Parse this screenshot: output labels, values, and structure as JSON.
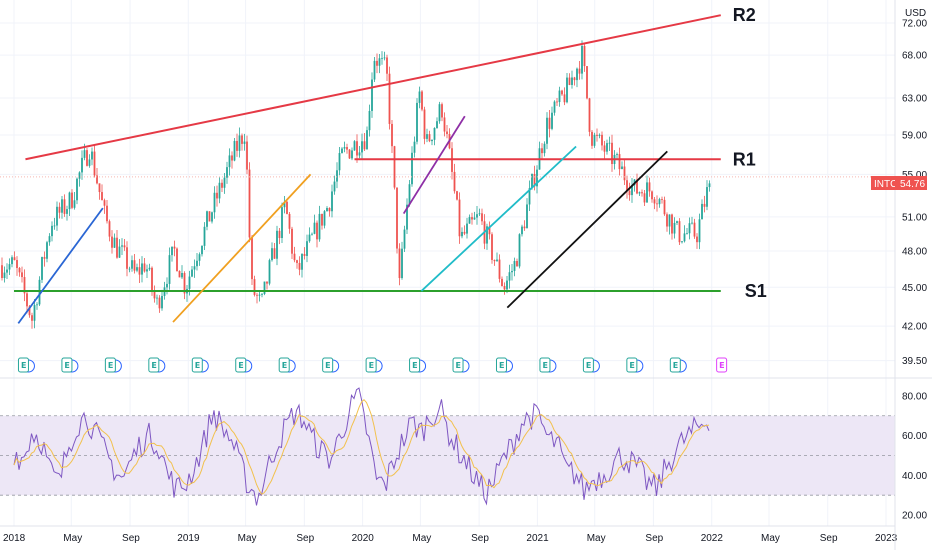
{
  "currency_label": "USD",
  "symbol_label": "INTC",
  "last_price": "54.76",
  "earnings_marker": "E",
  "colors": {
    "up_candle": "#26a69a",
    "down_candle": "#ef5350",
    "rsi_line": "#7e57c2",
    "rsi_ma": "#f2c14e",
    "rsi_band": "#ede7f6",
    "resistance": "#e53945",
    "support": "#2ca02c",
    "price_line": "#f5b7b1"
  },
  "chart_data": [
    {
      "type": "candlestick",
      "description_visible": "price panel",
      "y_ticks": [
        "72.00",
        "68.00",
        "63.00",
        "59.00",
        "55.00",
        "51.00",
        "48.00",
        "45.00",
        "42.00",
        "39.50"
      ],
      "x_ticks": [
        "2018",
        "May",
        "Sep",
        "2019",
        "May",
        "Sep",
        "2020",
        "May",
        "Sep",
        "2021",
        "May",
        "Sep",
        "2022",
        "May",
        "Sep",
        "2023"
      ],
      "x_range": [
        "2018-01-01",
        "2023-01-01"
      ],
      "y_range": [
        38.5,
        75
      ],
      "scale": "log",
      "close_path": [
        [
          "2018-01-02",
          46.8
        ],
        [
          "2018-02-08",
          42.5
        ],
        [
          "2018-03-20",
          50.5
        ],
        [
          "2018-04-30",
          52.5
        ],
        [
          "2018-06-08",
          57.8
        ],
        [
          "2018-07-10",
          51.0
        ],
        [
          "2018-08-01",
          48.5
        ],
        [
          "2018-09-12",
          46.0
        ],
        [
          "2018-10-03",
          47.0
        ],
        [
          "2018-10-26",
          43.5
        ],
        [
          "2018-12-03",
          48.0
        ],
        [
          "2018-12-26",
          45.0
        ],
        [
          "2019-01-24",
          48.5
        ],
        [
          "2019-04-15",
          58.0
        ],
        [
          "2019-04-30",
          59.5
        ],
        [
          "2019-05-13",
          45.0
        ],
        [
          "2019-06-03",
          43.5
        ],
        [
          "2019-07-23",
          52.0
        ],
        [
          "2019-08-15",
          46.0
        ],
        [
          "2019-10-20",
          52.0
        ],
        [
          "2019-11-20",
          57.0
        ],
        [
          "2020-01-10",
          59.0
        ],
        [
          "2020-01-24",
          68.0
        ],
        [
          "2020-02-20",
          66.0
        ],
        [
          "2020-03-18",
          45.0
        ],
        [
          "2020-04-29",
          63.5
        ],
        [
          "2020-05-14",
          58.0
        ],
        [
          "2020-06-15",
          62.0
        ],
        [
          "2020-07-24",
          49.0
        ],
        [
          "2020-09-01",
          51.0
        ],
        [
          "2020-10-23",
          45.0
        ],
        [
          "2020-11-16",
          47.0
        ],
        [
          "2021-01-20",
          60.0
        ],
        [
          "2021-03-05",
          64.0
        ],
        [
          "2021-04-05",
          68.0
        ],
        [
          "2021-04-23",
          59.0
        ],
        [
          "2021-06-10",
          56.5
        ],
        [
          "2021-07-23",
          53.5
        ],
        [
          "2021-09-01",
          53.5
        ],
        [
          "2021-10-22",
          49.5
        ],
        [
          "2021-12-01",
          49.5
        ],
        [
          "2021-12-31",
          54.76
        ]
      ]
    },
    {
      "type": "line",
      "description_visible": "RSI panel",
      "y_ticks": [
        "80.00",
        "60.00",
        "40.00",
        "20.00"
      ],
      "y_range": [
        15,
        88
      ],
      "band": [
        30,
        70
      ],
      "mid": 50,
      "series": [
        {
          "values": [
            52,
            48,
            62,
            58,
            42,
            36,
            55,
            66,
            70,
            61,
            52,
            44,
            38,
            48,
            56,
            60,
            55,
            40,
            33,
            36,
            45,
            57,
            72,
            64,
            58,
            45,
            34,
            29,
            43,
            56,
            64,
            72,
            68,
            58,
            52,
            48,
            60,
            72,
            80,
            62,
            38,
            35,
            48,
            58,
            67,
            62,
            70,
            74,
            62,
            53,
            46,
            38,
            31,
            37,
            48,
            55,
            66,
            70,
            69,
            58,
            56,
            42,
            41,
            32,
            38,
            40,
            45,
            50,
            47,
            43,
            36,
            33,
            44,
            52,
            58,
            62,
            66,
            70
          ]
        }
      ]
    }
  ],
  "annotations": {
    "levels": [
      {
        "label": "R2",
        "from": [
          "2018-01-25",
          56.5
        ],
        "to": [
          "2022-01-20",
          73.0
        ]
      },
      {
        "label": "R1",
        "from": [
          "2019-12-15",
          56.5
        ],
        "to": [
          "2022-01-20",
          56.5
        ]
      },
      {
        "label": "S1",
        "from": [
          "2018-01-01",
          44.7
        ],
        "to": [
          "2022-01-20",
          44.7
        ]
      }
    ],
    "channels": [
      {
        "color": "#2a66d4",
        "from": [
          "2018-01-10",
          42.2
        ],
        "to": [
          "2018-07-06",
          51.8
        ]
      },
      {
        "color": "#f0a020",
        "from": [
          "2018-11-30",
          42.3
        ],
        "to": [
          "2019-09-14",
          55.0
        ]
      },
      {
        "color": "#8e2fa6",
        "from": [
          "2020-03-27",
          51.3
        ],
        "to": [
          "2020-08-02",
          61.0
        ]
      },
      {
        "color": "#20bcc8",
        "from": [
          "2020-05-03",
          44.7
        ],
        "to": [
          "2021-03-23",
          57.8
        ]
      },
      {
        "color": "#111111",
        "from": [
          "2020-10-30",
          43.4
        ],
        "to": [
          "2021-09-30",
          57.3
        ]
      }
    ],
    "earnings_dates": [
      "2018-01-25",
      "2018-04-26",
      "2018-07-26",
      "2018-10-25",
      "2019-01-24",
      "2019-04-25",
      "2019-07-25",
      "2019-10-24",
      "2020-01-23",
      "2020-04-23",
      "2020-07-23",
      "2020-10-22",
      "2021-01-21",
      "2021-04-22",
      "2021-07-22",
      "2021-10-21",
      "2022-01-26"
    ]
  }
}
